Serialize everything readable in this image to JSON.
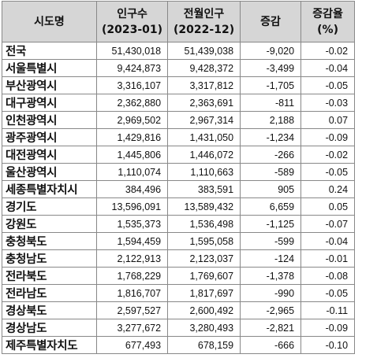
{
  "table": {
    "headers": [
      {
        "line1": "시도명",
        "line2": ""
      },
      {
        "line1": "인구수",
        "line2": "(2023-01)"
      },
      {
        "line1": "전월인구",
        "line2": "(2022-12)"
      },
      {
        "line1": "증감",
        "line2": ""
      },
      {
        "line1": "증감율",
        "line2": "(%)"
      }
    ],
    "rows": [
      {
        "region": "전국",
        "pop": "51,430,018",
        "prev": "51,439,038",
        "change": "-9,020",
        "rate": "-0.02"
      },
      {
        "region": "서울특별시",
        "pop": "9,424,873",
        "prev": "9,428,372",
        "change": "-3,499",
        "rate": "-0.04"
      },
      {
        "region": "부산광역시",
        "pop": "3,316,107",
        "prev": "3,317,812",
        "change": "-1,705",
        "rate": "-0.05"
      },
      {
        "region": "대구광역시",
        "pop": "2,362,880",
        "prev": "2,363,691",
        "change": "-811",
        "rate": "-0.03"
      },
      {
        "region": "인천광역시",
        "pop": "2,969,502",
        "prev": "2,967,314",
        "change": "2,188",
        "rate": "0.07"
      },
      {
        "region": "광주광역시",
        "pop": "1,429,816",
        "prev": "1,431,050",
        "change": "-1,234",
        "rate": "-0.09"
      },
      {
        "region": "대전광역시",
        "pop": "1,445,806",
        "prev": "1,446,072",
        "change": "-266",
        "rate": "-0.02"
      },
      {
        "region": "울산광역시",
        "pop": "1,110,074",
        "prev": "1,110,663",
        "change": "-589",
        "rate": "-0.05"
      },
      {
        "region": "세종특별자치시",
        "pop": "384,496",
        "prev": "383,591",
        "change": "905",
        "rate": "0.24"
      },
      {
        "region": "경기도",
        "pop": "13,596,091",
        "prev": "13,589,432",
        "change": "6,659",
        "rate": "0.05"
      },
      {
        "region": "강원도",
        "pop": "1,535,373",
        "prev": "1,536,498",
        "change": "-1,125",
        "rate": "-0.07"
      },
      {
        "region": "충청북도",
        "pop": "1,594,459",
        "prev": "1,595,058",
        "change": "-599",
        "rate": "-0.04"
      },
      {
        "region": "충청남도",
        "pop": "2,122,913",
        "prev": "2,123,037",
        "change": "-124",
        "rate": "-0.01"
      },
      {
        "region": "전라북도",
        "pop": "1,768,229",
        "prev": "1,769,607",
        "change": "-1,378",
        "rate": "-0.08"
      },
      {
        "region": "전라남도",
        "pop": "1,816,707",
        "prev": "1,817,697",
        "change": "-990",
        "rate": "-0.05"
      },
      {
        "region": "경상북도",
        "pop": "2,597,527",
        "prev": "2,600,492",
        "change": "-2,965",
        "rate": "-0.11"
      },
      {
        "region": "경상남도",
        "pop": "3,277,672",
        "prev": "3,280,493",
        "change": "-2,821",
        "rate": "-0.09"
      },
      {
        "region": "제주특별자치도",
        "pop": "677,493",
        "prev": "678,159",
        "change": "-666",
        "rate": "-0.10"
      }
    ]
  },
  "colors": {
    "header_bg": "#d6d6d6",
    "border": "#888888",
    "text": "#111111"
  }
}
